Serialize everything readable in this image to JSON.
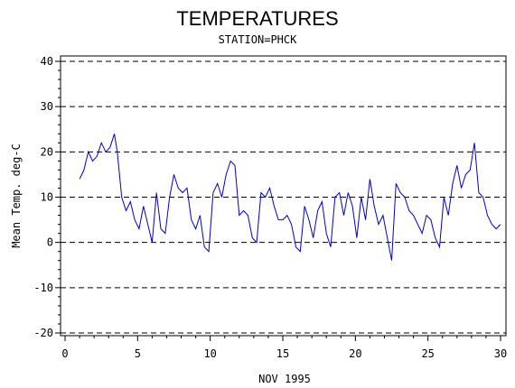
{
  "chart_data": {
    "type": "line",
    "title": "TEMPERATURES",
    "subtitle": "STATION=PHCK",
    "xlabel": "NOV 1995",
    "ylabel": "Mean Temp. deg-C",
    "xlim": [
      0,
      30
    ],
    "ylim": [
      -20,
      40
    ],
    "xticks": [
      0,
      5,
      10,
      15,
      20,
      25,
      30
    ],
    "yticks": [
      -20,
      -10,
      0,
      10,
      20,
      30,
      40
    ],
    "grid": "horizontal dashed",
    "colors": {
      "series": "#0000cc",
      "axis": "#000000"
    },
    "series": [
      {
        "x": [
          1.0,
          1.3,
          1.6,
          1.9,
          2.2,
          2.5,
          2.8,
          3.1,
          3.4,
          3.6,
          3.9,
          4.2,
          4.5,
          4.8,
          5.1,
          5.4,
          5.7,
          6.0,
          6.3,
          6.6,
          6.9,
          7.2,
          7.5,
          7.8,
          8.1,
          8.4,
          8.7,
          9.0,
          9.3,
          9.6,
          9.9,
          10.2,
          10.5,
          10.8,
          11.1,
          11.4,
          11.7,
          12.0,
          12.3,
          12.6,
          12.9,
          13.2,
          13.5,
          13.8,
          14.1,
          14.4,
          14.7,
          15.0,
          15.3,
          15.6,
          15.9,
          16.2,
          16.5,
          16.8,
          17.1,
          17.4,
          17.7,
          18.0,
          18.3,
          18.6,
          18.9,
          19.2,
          19.5,
          19.8,
          20.1,
          20.4,
          20.7,
          21.0,
          21.3,
          21.6,
          21.9,
          22.2,
          22.5,
          22.8,
          23.1,
          23.4,
          23.7,
          24.0,
          24.3,
          24.6,
          24.9,
          25.2,
          25.5,
          25.8,
          26.1,
          26.4,
          26.7,
          27.0,
          27.3,
          27.6,
          27.9,
          28.2,
          28.5,
          28.8,
          29.1,
          29.4,
          29.7,
          30.0
        ],
        "y": [
          14,
          16,
          20,
          18,
          19,
          22,
          20,
          21,
          24,
          20,
          10,
          7,
          9,
          5,
          3,
          8,
          4,
          0,
          11,
          3,
          2,
          10,
          15,
          12,
          11,
          12,
          5,
          3,
          6,
          -1,
          -2,
          11,
          13,
          10,
          15,
          18,
          17,
          6,
          7,
          6,
          1,
          0,
          11,
          10,
          12,
          8,
          5,
          5,
          6,
          4,
          -1,
          -2,
          8,
          5,
          1,
          7,
          9,
          2,
          -1,
          10,
          11,
          6,
          11,
          8,
          1,
          10,
          5,
          14,
          8,
          4,
          6,
          1,
          -4,
          13,
          11,
          10,
          7,
          6,
          4,
          2,
          6,
          5,
          1,
          -1,
          10,
          6,
          13,
          17,
          12,
          15,
          16,
          22,
          11,
          10,
          6,
          4,
          3,
          4
        ]
      }
    ]
  }
}
